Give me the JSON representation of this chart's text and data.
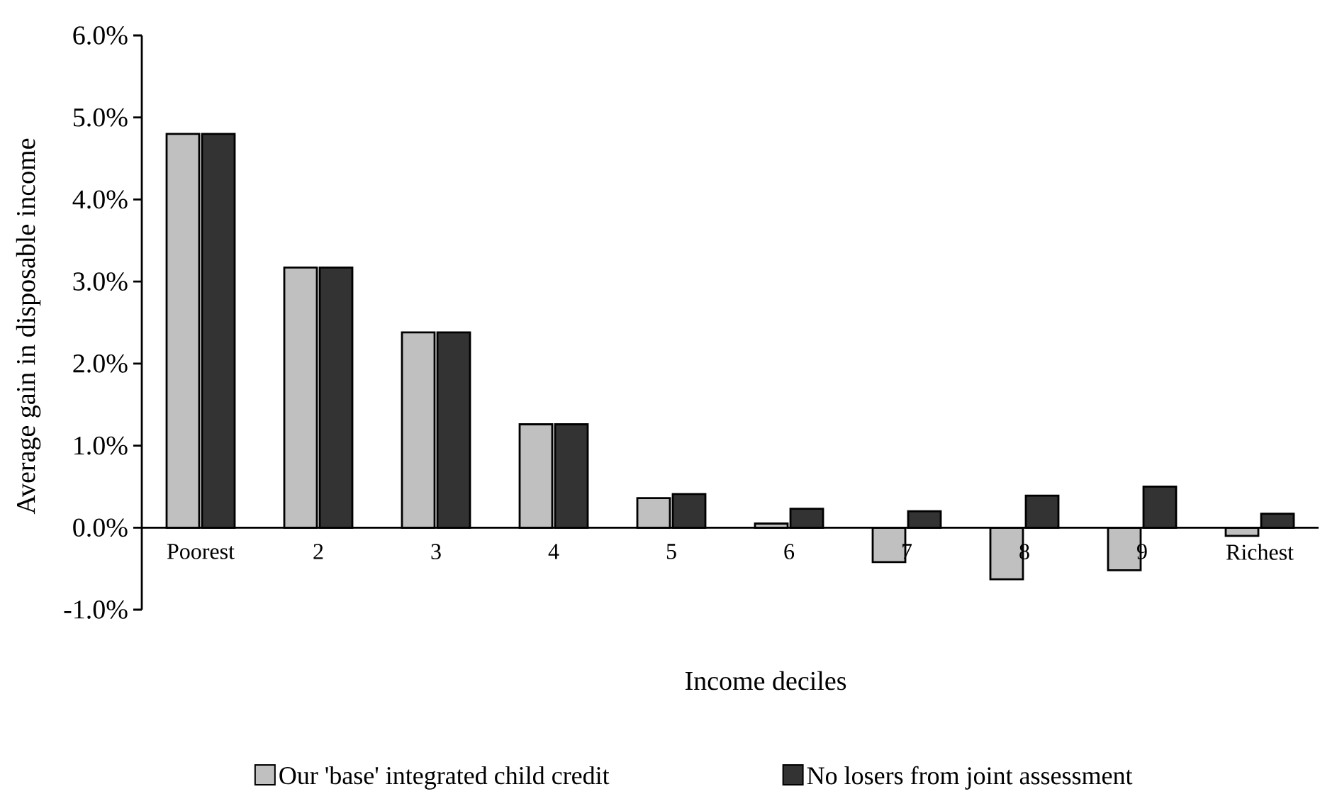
{
  "chart_data": {
    "type": "bar",
    "xlabel": "Income deciles",
    "ylabel": "Average gain in disposable income",
    "categories": [
      "Poorest",
      "2",
      "3",
      "4",
      "5",
      "6",
      "7",
      "8",
      "9",
      "Richest"
    ],
    "series": [
      {
        "name": "Our 'base' integrated child credit",
        "color": "#c0c0c0",
        "values": [
          4.8,
          3.17,
          2.38,
          1.26,
          0.36,
          0.05,
          -0.42,
          -0.63,
          -0.52,
          -0.1
        ]
      },
      {
        "name": "No losers from joint assessment",
        "color": "#333333",
        "values": [
          4.8,
          3.17,
          2.38,
          1.26,
          0.41,
          0.23,
          0.2,
          0.39,
          0.5,
          0.17
        ]
      }
    ],
    "ylim": [
      -1,
      6
    ],
    "yticks": [
      {
        "value": -1,
        "label": "-1.0%"
      },
      {
        "value": 0,
        "label": "0.0%"
      },
      {
        "value": 1,
        "label": "1.0%"
      },
      {
        "value": 2,
        "label": "2.0%"
      },
      {
        "value": 3,
        "label": "3.0%"
      },
      {
        "value": 4,
        "label": "4.0%"
      },
      {
        "value": 5,
        "label": "5.0%"
      },
      {
        "value": 6,
        "label": "6.0%"
      }
    ],
    "grid": false,
    "legend": "bottom"
  }
}
